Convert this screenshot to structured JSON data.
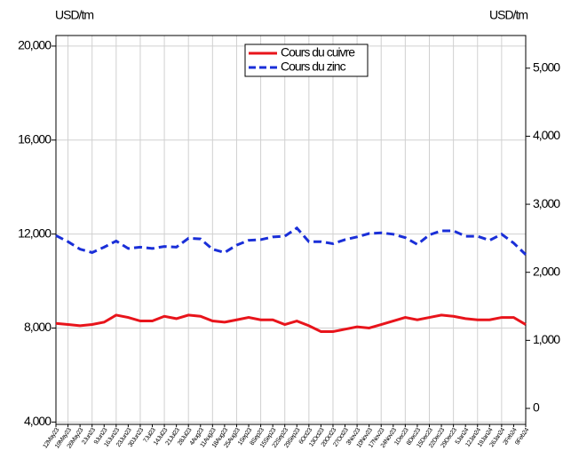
{
  "chart_data": {
    "type": "line",
    "y_label": "USD/tm",
    "y2_label": "USD/tm",
    "categories": [
      "12May23",
      "19May23",
      "26May23",
      "2Jun23",
      "9Jun23",
      "16Jun23",
      "23Jun23",
      "30Jun23",
      "7Jul23",
      "14Jul23",
      "21Jul23",
      "28Jul23",
      "4Aug23",
      "11Aug23",
      "18Aug23",
      "25Aug23",
      "1Sep23",
      "8Sep23",
      "15Sep23",
      "22Sep23",
      "29Sep23",
      "6Oct23",
      "13Oct23",
      "20Oct23",
      "27Oct23",
      "3Nov23",
      "10Nov23",
      "17Nov23",
      "24Nov23",
      "1Dec23",
      "8Dec23",
      "15Dec23",
      "22Dec23",
      "29Dec23",
      "5Jan24",
      "12Jan24",
      "19Jan24",
      "26Jan24",
      "2Feb24",
      "9Feb24"
    ],
    "series": [
      {
        "name": "Cours du cuivre",
        "color": "#e8141b",
        "dash": false,
        "values": [
          8200,
          8150,
          8100,
          8150,
          8250,
          8550,
          8450,
          8300,
          8300,
          8500,
          8400,
          8550,
          8500,
          8300,
          8250,
          8350,
          8450,
          8350,
          8350,
          8150,
          8300,
          8100,
          7850,
          7850,
          7950,
          8050,
          8000,
          8150,
          8300,
          8450,
          8350,
          8450,
          8550,
          8500,
          8400,
          8350,
          8350,
          8450,
          8450,
          8150
        ]
      },
      {
        "name": "Cours du zinc",
        "color": "#1a2fd8",
        "dash": true,
        "axis": "y2",
        "values": [
          2540,
          2450,
          2340,
          2290,
          2370,
          2460,
          2350,
          2370,
          2350,
          2380,
          2370,
          2500,
          2490,
          2340,
          2290,
          2400,
          2470,
          2480,
          2520,
          2530,
          2650,
          2450,
          2450,
          2420,
          2480,
          2520,
          2570,
          2580,
          2560,
          2510,
          2410,
          2550,
          2610,
          2610,
          2530,
          2530,
          2470,
          2560,
          2430,
          2260
        ]
      }
    ],
    "ylim": [
      3900,
      20450
    ],
    "yticks": [
      {
        "value": 4000,
        "label": "4,000"
      },
      {
        "value": 8000,
        "label": "8,000"
      },
      {
        "value": 12000,
        "label": "12,000"
      },
      {
        "value": 16000,
        "label": "16,000"
      },
      {
        "value": 20000,
        "label": "20,000"
      }
    ],
    "y2lim": [
      -235,
      5480
    ],
    "y2ticks": [
      0,
      {
        "value": 1000,
        "label": "1,000"
      },
      {
        "value": 2000,
        "label": "2,000"
      },
      {
        "value": 3000,
        "label": "3,000"
      },
      {
        "value": 4000,
        "label": "4,000"
      },
      {
        "value": 5000,
        "label": "5,000"
      }
    ],
    "grid": true,
    "legend": "top"
  }
}
